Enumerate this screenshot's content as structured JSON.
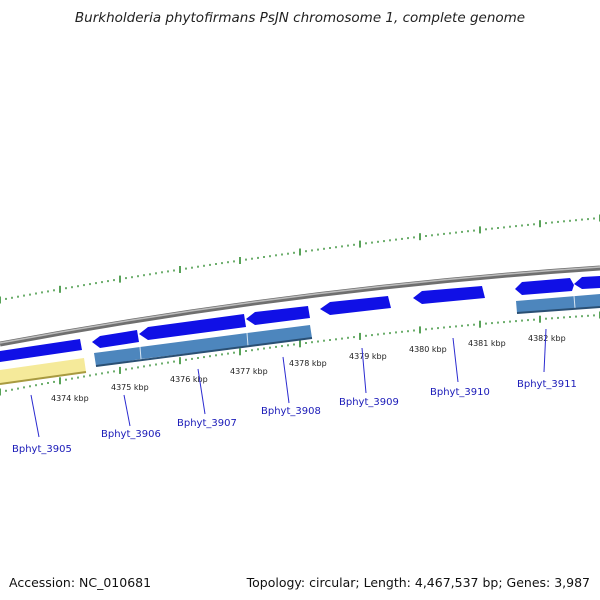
{
  "title": "Burkholderia phytofirmans PsJN chromosome 1, complete genome",
  "footer": {
    "accession": "Accession: NC_010681",
    "summary": "Topology: circular; Length: 4,467,537 bp; Genes: 3,987"
  },
  "colors": {
    "forward_gene": "#1010e6",
    "reverse_gene": "#4d86bd",
    "pseudo_gene": "#f5ea9a",
    "backbone": "#8c8c8c",
    "tick": "#2e8b2e",
    "label": "#1a1ab8",
    "leader": "#2b2bd0"
  },
  "scale": {
    "unit": "kbp",
    "tick_labels": [
      "4374 kbp",
      "4375 kbp",
      "4376 kbp",
      "4377 kbp",
      "4378 kbp",
      "4379 kbp",
      "4380 kbp",
      "4381 kbp",
      "4382 kbp"
    ]
  },
  "genes": [
    {
      "label": "Bphyt_3905"
    },
    {
      "label": "Bphyt_3906"
    },
    {
      "label": "Bphyt_3907"
    },
    {
      "label": "Bphyt_3908"
    },
    {
      "label": "Bphyt_3909"
    },
    {
      "label": "Bphyt_3910"
    },
    {
      "label": "Bphyt_3911"
    }
  ]
}
